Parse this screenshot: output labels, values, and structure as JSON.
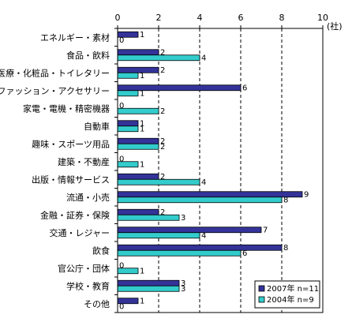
{
  "chart_data": {
    "type": "bar",
    "orientation": "horizontal",
    "unit_label": "(社)",
    "xlim": [
      0,
      10
    ],
    "x_ticks": [
      0,
      2,
      4,
      6,
      8,
      10
    ],
    "grid": "vertical dashed",
    "legend_position": "bottom-right",
    "categories": [
      "エネルギー・素材",
      "食品・飲料",
      "医療・化粧品・トイレタリー",
      "ファッション・アクセサリー",
      "家電・電機・精密機器",
      "自動車",
      "趣味・スポーツ用品",
      "建築・不動産",
      "出版・情報サービス",
      "流通・小売",
      "金融・証券・保険",
      "交通・レジャー",
      "飲食",
      "官公庁・団体",
      "学校・教育",
      "その他"
    ],
    "series": [
      {
        "name": "2007年 n=11",
        "color": "#333399",
        "values": [
          1,
          2,
          2,
          6,
          0,
          1,
          2,
          0,
          2,
          9,
          2,
          7,
          8,
          0,
          3,
          1
        ]
      },
      {
        "name": "2004年 n=9",
        "color": "#33CCCC",
        "values": [
          0,
          4,
          1,
          1,
          2,
          1,
          2,
          1,
          4,
          8,
          3,
          4,
          6,
          1,
          3,
          0
        ]
      }
    ]
  }
}
